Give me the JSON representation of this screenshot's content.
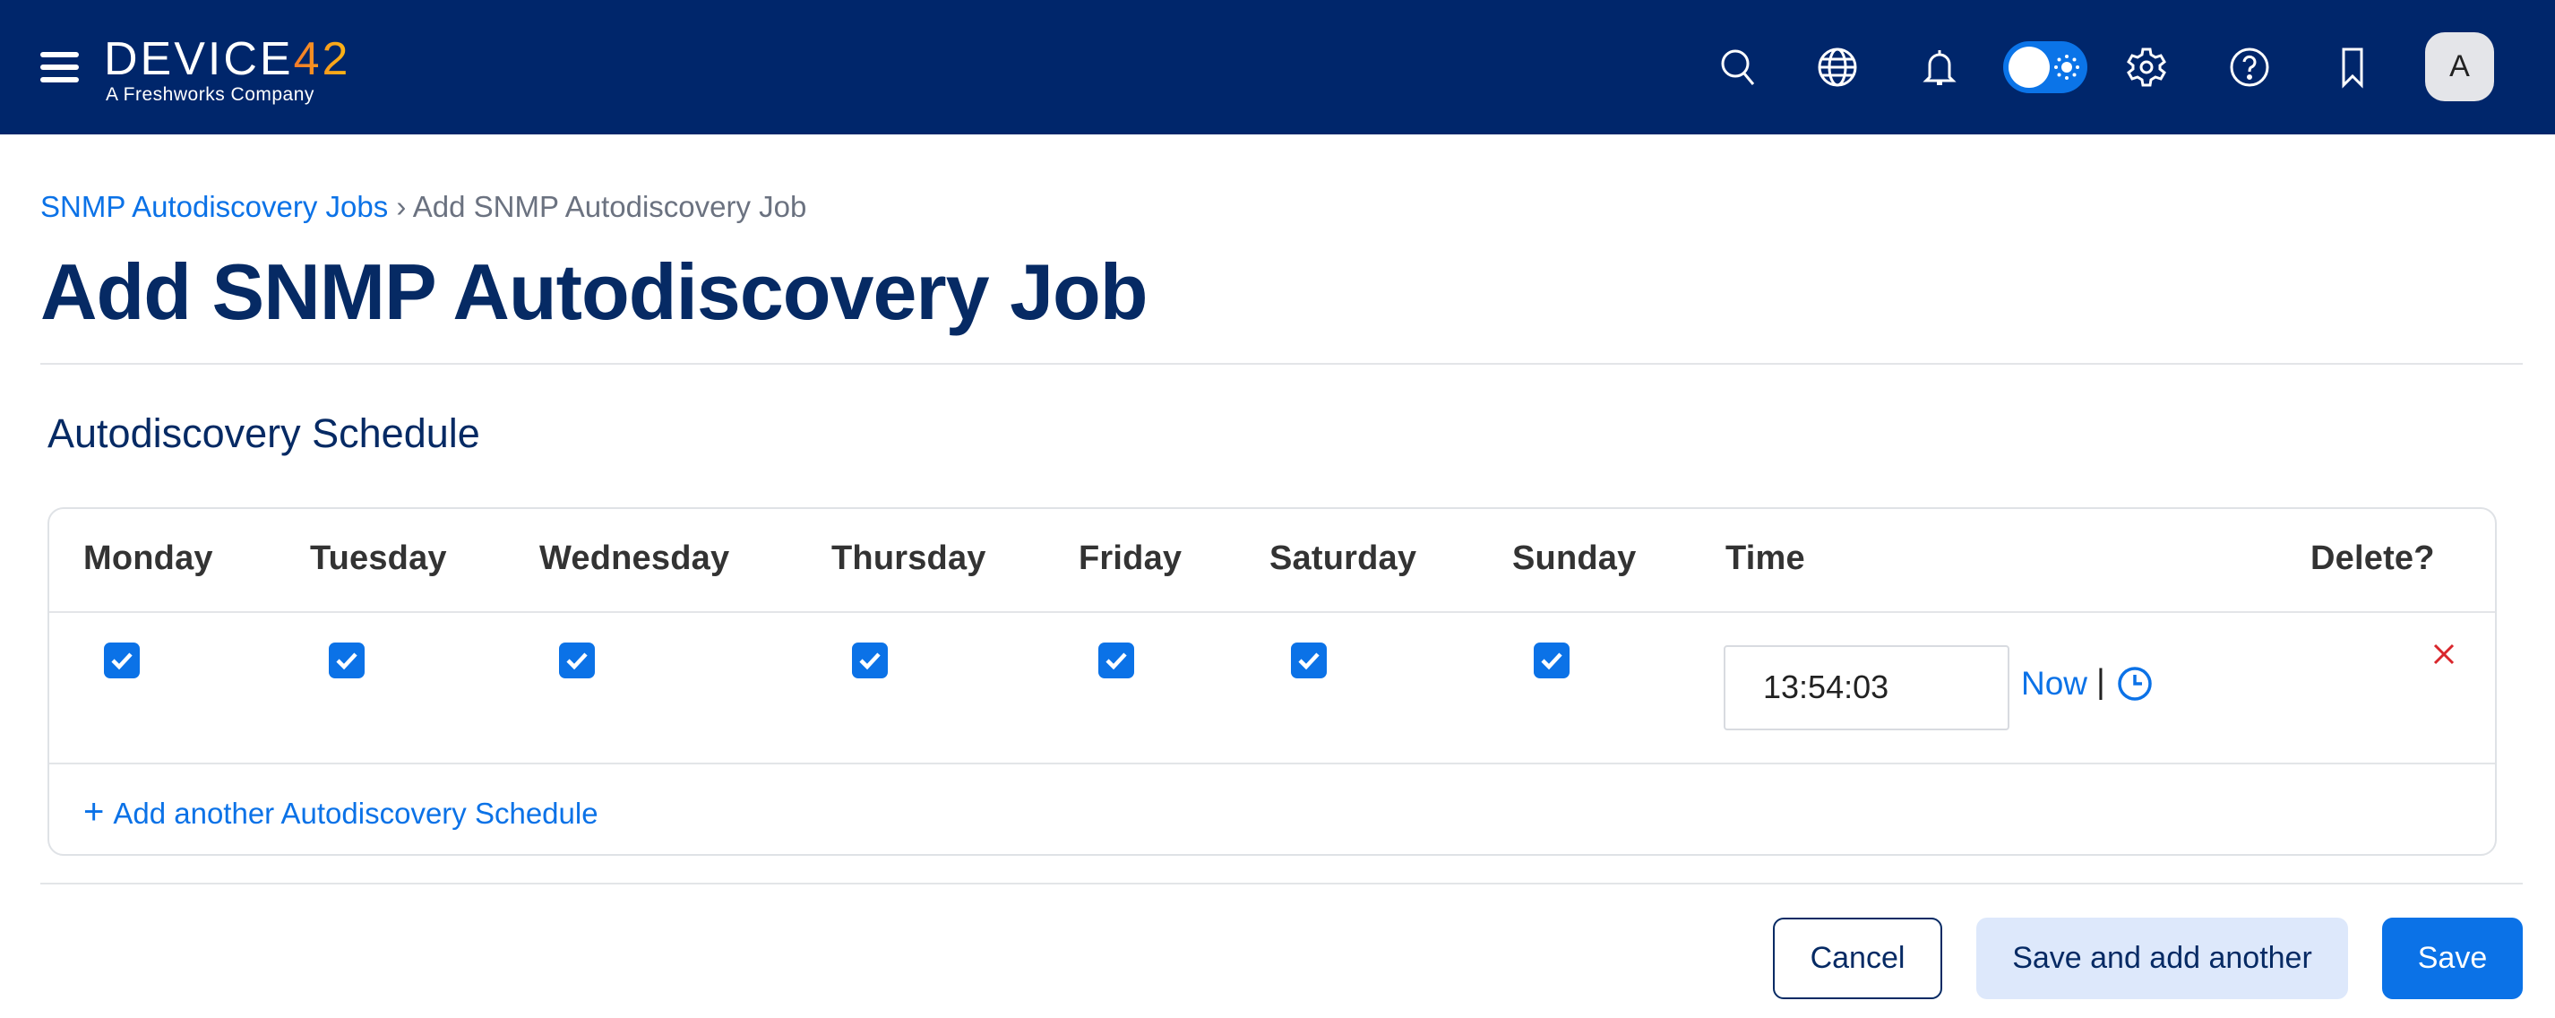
{
  "header": {
    "logo_main": "DEVICE",
    "logo_num": "42",
    "tagline": "A Freshworks Company",
    "avatar": "A",
    "icons": [
      "menu-icon",
      "search-icon",
      "globe-icon",
      "bell-icon",
      "theme-toggle",
      "gear-icon",
      "help-icon",
      "bookmark-icon"
    ]
  },
  "breadcrumb": {
    "parent": "SNMP Autodiscovery Jobs",
    "sep": " › ",
    "current": "Add SNMP Autodiscovery Job"
  },
  "page_title": "Add SNMP Autodiscovery Job",
  "section_title": "Autodiscovery Schedule",
  "table": {
    "headers": [
      "Monday",
      "Tuesday",
      "Wednesday",
      "Thursday",
      "Friday",
      "Saturday",
      "Sunday",
      "Time",
      "Delete?"
    ],
    "rows": [
      {
        "days_checked": [
          true,
          true,
          true,
          true,
          true,
          true,
          true
        ],
        "time": "13:54:03",
        "now_label": "Now",
        "pipe": "|"
      }
    ],
    "add_label": "Add another Autodiscovery Schedule"
  },
  "buttons": {
    "cancel": "Cancel",
    "save_add": "Save and add another",
    "save": "Save"
  },
  "colors": {
    "navbar": "#00266b",
    "accent": "#0b72e7",
    "title": "#062a64",
    "delete": "#d9262c"
  }
}
